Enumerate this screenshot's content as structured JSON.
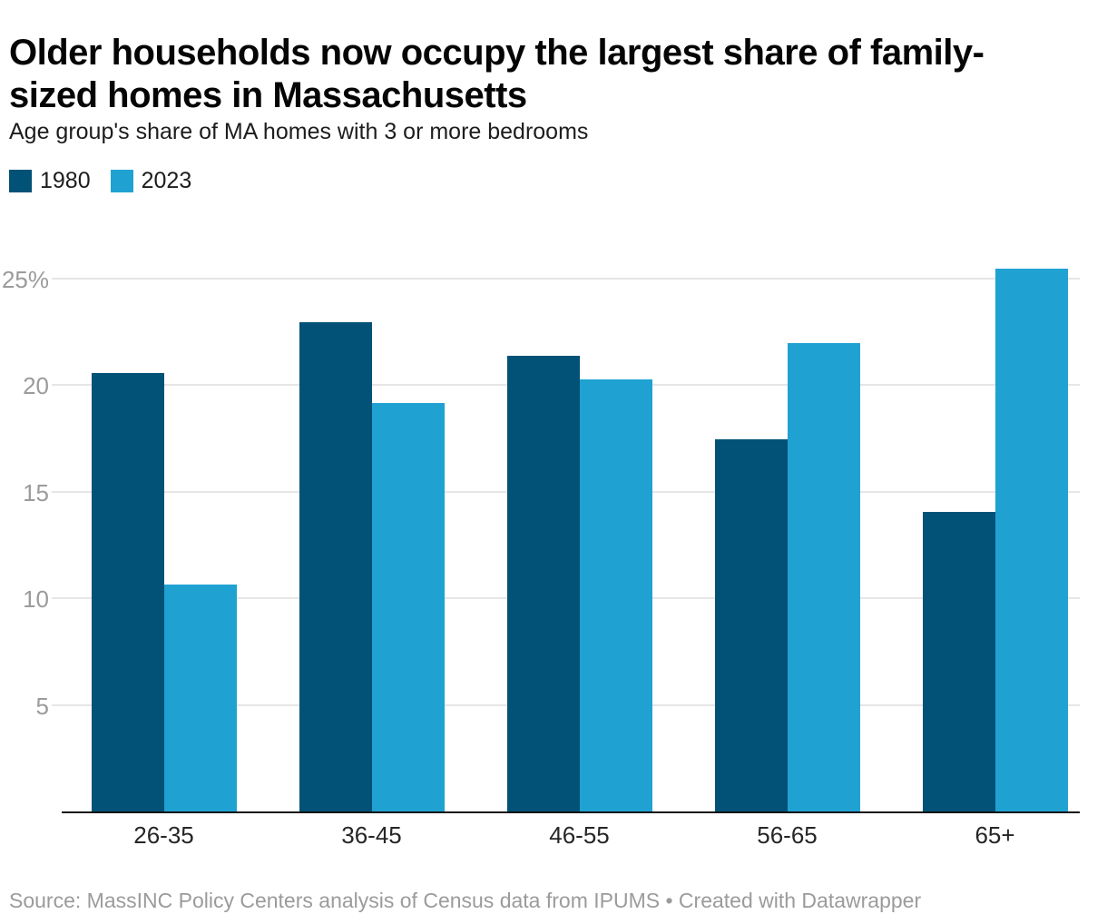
{
  "header": {
    "title_line1": "Older households now occupy the largest share of family-",
    "title_line2": "sized homes in Massachusetts",
    "subtitle": "Age group's share of MA homes with 3 or more bedrooms"
  },
  "legend": {
    "items": [
      {
        "label": "1980",
        "color": "#015276"
      },
      {
        "label": "2023",
        "color": "#1FA2D2"
      }
    ]
  },
  "chart_data": {
    "type": "bar",
    "title": "Older households now occupy the largest share of family-sized homes in Massachusetts",
    "subtitle": "Age group's share of MA homes with 3 or more bedrooms",
    "categories": [
      "26-35",
      "36-45",
      "46-55",
      "56-65",
      "65+"
    ],
    "series": [
      {
        "name": "1980",
        "color": "#015276",
        "values": [
          20.6,
          23.0,
          21.4,
          17.5,
          14.1
        ]
      },
      {
        "name": "2023",
        "color": "#1FA2D2",
        "values": [
          10.7,
          19.2,
          20.3,
          22.0,
          25.5
        ]
      }
    ],
    "xlabel": "",
    "ylabel": "",
    "unit": "%",
    "ylim": [
      0,
      26.7
    ],
    "y_ticks": [
      5,
      10,
      15,
      20,
      25
    ],
    "y_tick_labels": [
      "5",
      "10",
      "15",
      "20",
      "25%"
    ],
    "grid": "horizontal",
    "gridline_color": "#e6e6e6",
    "axis_line_color": "#141414",
    "legend_position": "top-left"
  },
  "footer": {
    "source": "Source: MassINC Policy Centers analysis of Census data from IPUMS • Created with Datawrapper"
  }
}
